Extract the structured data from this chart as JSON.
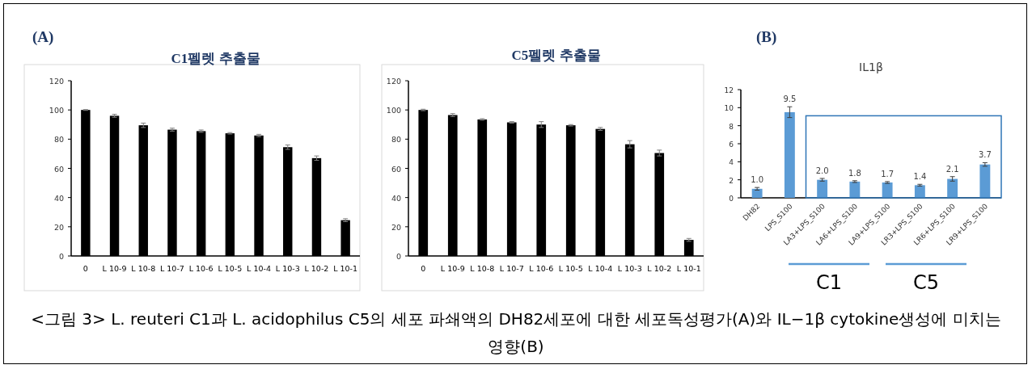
{
  "chart_data": [
    {
      "type": "bar",
      "title": "C1펠렛 추출물",
      "categories": [
        "0",
        "L 10-9",
        "L 10-8",
        "L 10-7",
        "L 10-6",
        "L 10-5",
        "L 10-4",
        "L 10-3",
        "L 10-2",
        "L 10-1"
      ],
      "values": [
        100,
        96,
        89.5,
        86.5,
        85.5,
        84,
        82.5,
        74.5,
        67,
        24.5
      ],
      "errors": [
        0.3,
        1,
        1.5,
        1,
        0.8,
        0.5,
        0.8,
        1.5,
        1.5,
        1
      ],
      "color": "#000000",
      "ylim": [
        0,
        120
      ],
      "yticks": [
        0,
        20,
        40,
        60,
        80,
        100,
        120
      ],
      "annotations": [
        "(A)",
        "<그림 3> L. reuteri C1과 L. acidophilus C5의 세포 파쇄액의 DH82세포에 대한 세포독성평가(A)와 IL−1β cytokine생성에 미치는 영향(B)"
      ]
    },
    {
      "type": "bar",
      "title": "C5펠렛 추출물",
      "categories": [
        "0",
        "L 10-9",
        "L 10-8",
        "L 10-7",
        "L 10-6",
        "L 10-5",
        "L 10-4",
        "L 10-3",
        "L 10-2",
        "L 10-1"
      ],
      "values": [
        100,
        96.5,
        93.5,
        91.5,
        90,
        89.5,
        87,
        76.5,
        70.5,
        11
      ],
      "errors": [
        0.5,
        1,
        0.5,
        0.5,
        2,
        0.5,
        1,
        2.5,
        2,
        1
      ],
      "color": "#000000",
      "ylim": [
        0,
        120
      ],
      "yticks": [
        0,
        20,
        40,
        60,
        80,
        100,
        120
      ]
    },
    {
      "type": "bar",
      "title": "IL1β",
      "categories": [
        "DH82",
        "LPS_S100",
        "LA3+LPS_S100",
        "LA6+LPS_S100",
        "LA9+LPS_S100",
        "LR3+LPS_S100",
        "LR6+LPS_S100",
        "LR9+LPS_S100"
      ],
      "values": [
        1.0,
        9.5,
        2.0,
        1.8,
        1.7,
        1.4,
        2.1,
        3.7
      ],
      "errors": [
        0.15,
        0.6,
        0.15,
        0.1,
        0.1,
        0.1,
        0.25,
        0.2
      ],
      "value_labels": [
        "1.0",
        "9.5",
        "2.0",
        "1.8",
        "1.7",
        "1.4",
        "2.1",
        "3.7"
      ],
      "color": "#5b9bd5",
      "ylim": [
        0,
        12
      ],
      "yticks": [
        0,
        2,
        4,
        6,
        8,
        10,
        12
      ],
      "annotations": [
        "(B)",
        "C1",
        "C5"
      ]
    }
  ]
}
